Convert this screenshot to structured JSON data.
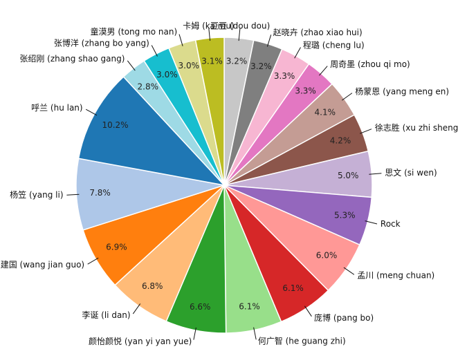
{
  "chart_data": {
    "type": "pie",
    "title": "",
    "start_angle_deg": 90,
    "direction": "clockwise",
    "legend": "none",
    "slices": [
      {
        "label": "豆豆 (dou dou)",
        "value": 3.2,
        "color": "#c7c7c7"
      },
      {
        "label": "赵晓卉 (zhao xiao hui)",
        "value": 3.2,
        "color": "#7f7f7f"
      },
      {
        "label": "程璐 (cheng lu)",
        "value": 3.3,
        "color": "#f7b6d2"
      },
      {
        "label": "周奇墨 (zhou qi mo)",
        "value": 3.3,
        "color": "#e377c2"
      },
      {
        "label": "杨蒙恩 (yang meng en)",
        "value": 4.1,
        "color": "#c49c94"
      },
      {
        "label": "徐志胜 (xu zhi sheng)",
        "value": 4.2,
        "color": "#8c564b"
      },
      {
        "label": "思文 (si wen)",
        "value": 5.0,
        "color": "#c5b0d5"
      },
      {
        "label": "Rock",
        "value": 5.3,
        "color": "#9467bd"
      },
      {
        "label": "孟川 (meng chuan)",
        "value": 6.0,
        "color": "#ff9896"
      },
      {
        "label": "庞博 (pang bo)",
        "value": 6.1,
        "color": "#d62728"
      },
      {
        "label": "何广智 (he guang zhi)",
        "value": 6.1,
        "color": "#98df8a"
      },
      {
        "label": "颜怡颜悦 (yan yi yan yue)",
        "value": 6.6,
        "color": "#2ca02c"
      },
      {
        "label": "李诞 (li dan)",
        "value": 6.8,
        "color": "#ffbb78"
      },
      {
        "label": "王建国 (wang jian guo)",
        "value": 6.9,
        "color": "#ff7f0e"
      },
      {
        "label": "杨笠 (yang li)",
        "value": 7.8,
        "color": "#aec7e8"
      },
      {
        "label": "呼兰 (hu lan)",
        "value": 10.2,
        "color": "#1f77b4"
      },
      {
        "label": "张绍刚 (zhang shao gang)",
        "value": 2.8,
        "color": "#9edae5"
      },
      {
        "label": "张博洋 (zhang bo yang)",
        "value": 3.0,
        "color": "#17becf"
      },
      {
        "label": "童漠男 (tong mo nan)",
        "value": 3.0,
        "color": "#dbdb8d"
      },
      {
        "label": "卡姆 (ka mu)",
        "value": 3.1,
        "color": "#bcbd22"
      }
    ],
    "value_labels": [
      "3.2%",
      "3.2%",
      "3.3%",
      "3.3%",
      "4.1%",
      "4.2%",
      "5.0%",
      "5.3%",
      "6.0%",
      "6.1%",
      "6.1%",
      "6.6%",
      "6.8%",
      "6.9%",
      "7.8%",
      "10.2%",
      "2.8%",
      "3.0%",
      "3.0%",
      "3.1%"
    ]
  }
}
